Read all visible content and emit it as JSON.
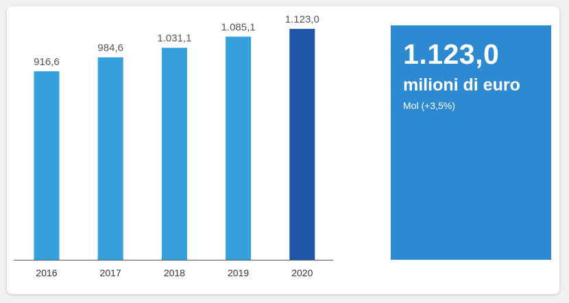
{
  "chart_data": {
    "type": "bar",
    "categories": [
      "2016",
      "2017",
      "2018",
      "2019",
      "2020"
    ],
    "values": [
      916.6,
      984.6,
      1031.1,
      1085.1,
      1123.0
    ],
    "value_labels": [
      "916,6",
      "984,6",
      "1.031,1",
      "1.085,1",
      "1.123,0"
    ],
    "highlight_index": 4,
    "title": "",
    "xlabel": "",
    "ylabel": "",
    "ylim": [
      0,
      1200
    ],
    "grid": false,
    "colors": {
      "bar": "#34a0dc",
      "highlight": "#1f56a8",
      "axis": "#555555",
      "label": "#555555"
    }
  },
  "kpi": {
    "value": "1.123,0",
    "unit": "milioni di euro",
    "subtitle": "Mol (+3,5%)",
    "background": "#2e8ad0"
  }
}
